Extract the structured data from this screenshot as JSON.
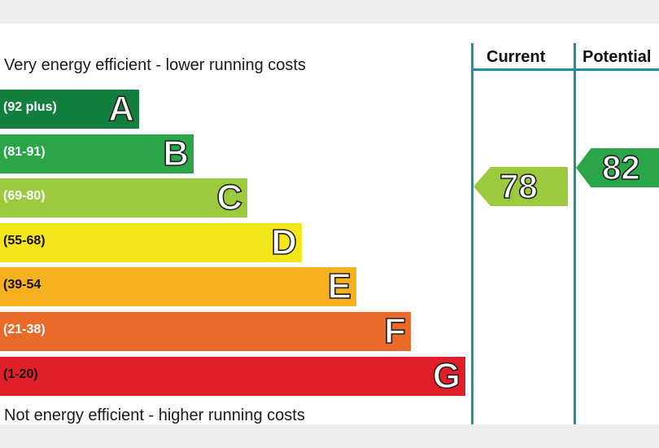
{
  "chart_data": {
    "type": "bar",
    "top_label": "Very energy efficient - lower running costs",
    "bottom_label": "Not energy efficient - higher running costs",
    "bands": [
      {
        "letter": "A",
        "range": "(92 plus)",
        "color": "#137f3e",
        "dark_text": false
      },
      {
        "letter": "B",
        "range": "(81-91)",
        "color": "#2aa548",
        "dark_text": false
      },
      {
        "letter": "C",
        "range": "(69-80)",
        "color": "#9cca3f",
        "dark_text": false
      },
      {
        "letter": "D",
        "range": "(55-68)",
        "color": "#f5e61a",
        "dark_text": true
      },
      {
        "letter": "E",
        "range": "(39-54",
        "color": "#f6b120",
        "dark_text": true
      },
      {
        "letter": "F",
        "range": "(21-38)",
        "color": "#ea6a2a",
        "dark_text": false
      },
      {
        "letter": "G",
        "range": "(1-20)",
        "color": "#e11f2a",
        "dark_text": true
      }
    ],
    "columns": [
      {
        "label": "Current",
        "value": "78",
        "band": "C",
        "color": "#9cca3f"
      },
      {
        "label": "Potential",
        "value": "82",
        "band": "B",
        "color": "#2aa548"
      }
    ]
  }
}
